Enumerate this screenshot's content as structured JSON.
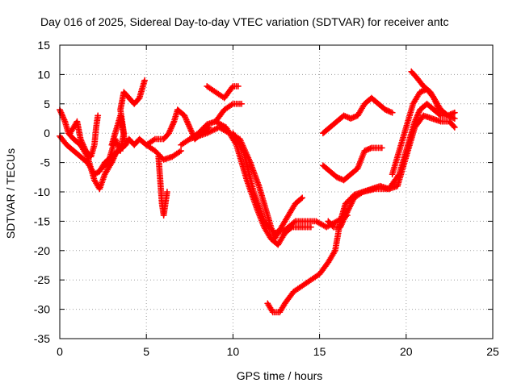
{
  "chart_data": {
    "type": "scatter",
    "title": "Day 016 of 2025, Sidereal Day-to-day VTEC variation (SDTVAR) for receiver antc",
    "xlabel": "GPS time / hours",
    "ylabel": "SDTVAR / TECUs",
    "xlim": [
      0,
      25
    ],
    "ylim": [
      -35,
      15
    ],
    "xticks": [
      "0",
      "5",
      "10",
      "15",
      "20",
      "25"
    ],
    "yticks": [
      "15",
      "10",
      "5",
      "0",
      "-5",
      "-10",
      "-15",
      "-20",
      "-25",
      "-30",
      "-35"
    ],
    "grid": true,
    "legend": "none",
    "marker": "plus",
    "color": "#ff0000",
    "series": [
      {
        "points": [
          [
            0,
            4
          ],
          [
            0.3,
            2
          ],
          [
            0.5,
            0
          ],
          [
            0.8,
            -1
          ],
          [
            1.2,
            -2
          ],
          [
            1.6,
            -4
          ],
          [
            2.0,
            -8
          ],
          [
            2.3,
            -9.5
          ],
          [
            2.6,
            -7
          ],
          [
            3.0,
            -5
          ],
          [
            3.3,
            -3
          ]
        ]
      },
      {
        "points": [
          [
            0,
            -0.5
          ],
          [
            0.4,
            -2
          ],
          [
            0.8,
            -3
          ],
          [
            1.2,
            -4
          ],
          [
            1.6,
            -5
          ],
          [
            2.0,
            -7
          ],
          [
            2.3,
            -6.5
          ],
          [
            2.6,
            -5
          ],
          [
            3.0,
            -4
          ],
          [
            3.4,
            -3
          ],
          [
            3.8,
            -2
          ]
        ]
      },
      {
        "points": [
          [
            0.6,
            0
          ],
          [
            0.8,
            1
          ],
          [
            1.0,
            2
          ],
          [
            1.2,
            -1
          ],
          [
            1.5,
            -3
          ],
          [
            1.8,
            -4
          ],
          [
            2.0,
            -2
          ],
          [
            2.1,
            1
          ],
          [
            2.2,
            3
          ]
        ]
      },
      {
        "points": [
          [
            2.4,
            -6
          ],
          [
            2.8,
            -5
          ],
          [
            3.0,
            -3
          ],
          [
            3.2,
            -1
          ],
          [
            3.5,
            -3
          ],
          [
            3.7,
            0
          ],
          [
            3.5,
            4
          ],
          [
            3.7,
            7
          ],
          [
            4.0,
            6
          ],
          [
            4.3,
            5
          ],
          [
            4.6,
            6
          ],
          [
            4.9,
            9
          ]
        ]
      },
      {
        "points": [
          [
            3.0,
            -2
          ],
          [
            3.3,
            1
          ],
          [
            3.5,
            3
          ],
          [
            3.8,
            -2
          ],
          [
            4.0,
            -1
          ],
          [
            4.3,
            -2
          ],
          [
            4.6,
            -1
          ],
          [
            5.0,
            -2
          ],
          [
            5.5,
            -3
          ],
          [
            6.0,
            -4.5
          ],
          [
            6.5,
            -4
          ],
          [
            7.0,
            -3
          ]
        ]
      },
      {
        "points": [
          [
            5.7,
            -4
          ],
          [
            5.8,
            -8
          ],
          [
            5.9,
            -12
          ],
          [
            6.0,
            -14
          ],
          [
            6.1,
            -12
          ],
          [
            6.2,
            -10
          ]
        ]
      },
      {
        "points": [
          [
            5.0,
            -2
          ],
          [
            5.5,
            -1
          ],
          [
            6.0,
            -1
          ],
          [
            6.3,
            0
          ],
          [
            6.6,
            2
          ],
          [
            6.8,
            4
          ],
          [
            7.2,
            3
          ],
          [
            7.5,
            1
          ],
          [
            7.8,
            -1
          ],
          [
            8.2,
            0
          ],
          [
            8.6,
            1
          ]
        ]
      },
      {
        "points": [
          [
            7.0,
            -2
          ],
          [
            7.5,
            -1
          ],
          [
            8.0,
            0
          ],
          [
            8.5,
            1.5
          ],
          [
            9.0,
            2
          ],
          [
            9.5,
            4
          ],
          [
            10.0,
            5
          ],
          [
            10.5,
            5
          ]
        ]
      },
      {
        "points": [
          [
            8.5,
            8
          ],
          [
            9.0,
            7
          ],
          [
            9.5,
            6
          ],
          [
            10.0,
            8
          ],
          [
            10.3,
            8
          ]
        ]
      },
      {
        "points": [
          [
            7.5,
            -1
          ],
          [
            8.5,
            0
          ],
          [
            9.2,
            1
          ],
          [
            9.8,
            0
          ],
          [
            10.4,
            -1
          ],
          [
            11.0,
            -5
          ],
          [
            11.5,
            -9
          ],
          [
            12.0,
            -14
          ],
          [
            12.4,
            -18
          ],
          [
            12.8,
            -16
          ],
          [
            13.2,
            -14
          ],
          [
            13.6,
            -12
          ],
          [
            14.0,
            -11
          ]
        ]
      },
      {
        "points": [
          [
            9.0,
            2
          ],
          [
            9.6,
            1
          ],
          [
            10.2,
            -2
          ],
          [
            10.8,
            -8
          ],
          [
            11.4,
            -13
          ],
          [
            11.8,
            -16
          ],
          [
            12.2,
            -18
          ],
          [
            12.6,
            -19
          ],
          [
            13.0,
            -17
          ],
          [
            13.4,
            -16
          ],
          [
            14.0,
            -16
          ],
          [
            14.5,
            -16
          ]
        ]
      },
      {
        "points": [
          [
            10.0,
            0
          ],
          [
            10.6,
            -3
          ],
          [
            11.2,
            -10
          ],
          [
            11.8,
            -15
          ],
          [
            12.4,
            -17
          ],
          [
            13.0,
            -16.5
          ],
          [
            13.6,
            -15
          ],
          [
            14.2,
            -15
          ],
          [
            14.8,
            -15
          ],
          [
            15.4,
            -16
          ],
          [
            16.0,
            -15
          ],
          [
            16.6,
            -14
          ]
        ]
      },
      {
        "points": [
          [
            12.0,
            -29
          ],
          [
            12.3,
            -30.5
          ],
          [
            12.7,
            -30.5
          ],
          [
            13.0,
            -29
          ],
          [
            13.5,
            -27
          ],
          [
            14.0,
            -26
          ],
          [
            14.5,
            -25
          ],
          [
            15.0,
            -24
          ],
          [
            15.5,
            -22
          ],
          [
            15.9,
            -20
          ],
          [
            16.2,
            -15
          ],
          [
            16.5,
            -12
          ],
          [
            17.0,
            -10.5
          ],
          [
            17.5,
            -10
          ],
          [
            18.0,
            -9.5
          ],
          [
            18.5,
            -9
          ],
          [
            19.0,
            -9.5
          ],
          [
            19.5,
            -9
          ],
          [
            20.0,
            -4
          ],
          [
            20.5,
            1
          ],
          [
            21.0,
            3
          ],
          [
            21.5,
            2.5
          ],
          [
            22.0,
            2
          ],
          [
            22.5,
            2
          ],
          [
            22.8,
            1
          ]
        ]
      },
      {
        "points": [
          [
            15.2,
            -5.5
          ],
          [
            15.6,
            -6.5
          ],
          [
            16.0,
            -7.5
          ],
          [
            16.4,
            -8
          ],
          [
            16.8,
            -7
          ],
          [
            17.2,
            -6
          ],
          [
            17.6,
            -3
          ],
          [
            18.0,
            -2.5
          ],
          [
            18.6,
            -2.5
          ]
        ]
      },
      {
        "points": [
          [
            15.2,
            0
          ],
          [
            15.6,
            1
          ],
          [
            16.0,
            2
          ],
          [
            16.4,
            3
          ],
          [
            16.8,
            2.5
          ],
          [
            17.2,
            3
          ],
          [
            17.6,
            5
          ],
          [
            18.0,
            6
          ],
          [
            18.4,
            5
          ],
          [
            18.8,
            4
          ],
          [
            19.2,
            3.5
          ]
        ]
      },
      {
        "points": [
          [
            15.5,
            -15
          ],
          [
            15.8,
            -16
          ],
          [
            16.2,
            -16
          ],
          [
            16.5,
            -14
          ],
          [
            17.0,
            -11
          ],
          [
            17.5,
            -10
          ],
          [
            18.2,
            -9.5
          ],
          [
            19.0,
            -9.5
          ],
          [
            19.6,
            -7
          ],
          [
            20.0,
            -3
          ],
          [
            20.5,
            2
          ],
          [
            20.8,
            4
          ],
          [
            21.2,
            5
          ],
          [
            21.6,
            4
          ],
          [
            22.0,
            3
          ],
          [
            22.4,
            3
          ],
          [
            22.8,
            3.5
          ]
        ]
      },
      {
        "points": [
          [
            19.2,
            -7
          ],
          [
            19.6,
            -3
          ],
          [
            20.0,
            1
          ],
          [
            20.4,
            5
          ],
          [
            20.8,
            7
          ],
          [
            21.2,
            7.5
          ],
          [
            21.6,
            6
          ],
          [
            21.9,
            4
          ]
        ]
      },
      {
        "points": [
          [
            20.3,
            10.5
          ],
          [
            20.6,
            9.5
          ],
          [
            21.0,
            8
          ],
          [
            21.4,
            7
          ],
          [
            21.7,
            5.5
          ],
          [
            22.0,
            4
          ],
          [
            22.4,
            3
          ],
          [
            22.8,
            2.5
          ]
        ]
      }
    ]
  }
}
